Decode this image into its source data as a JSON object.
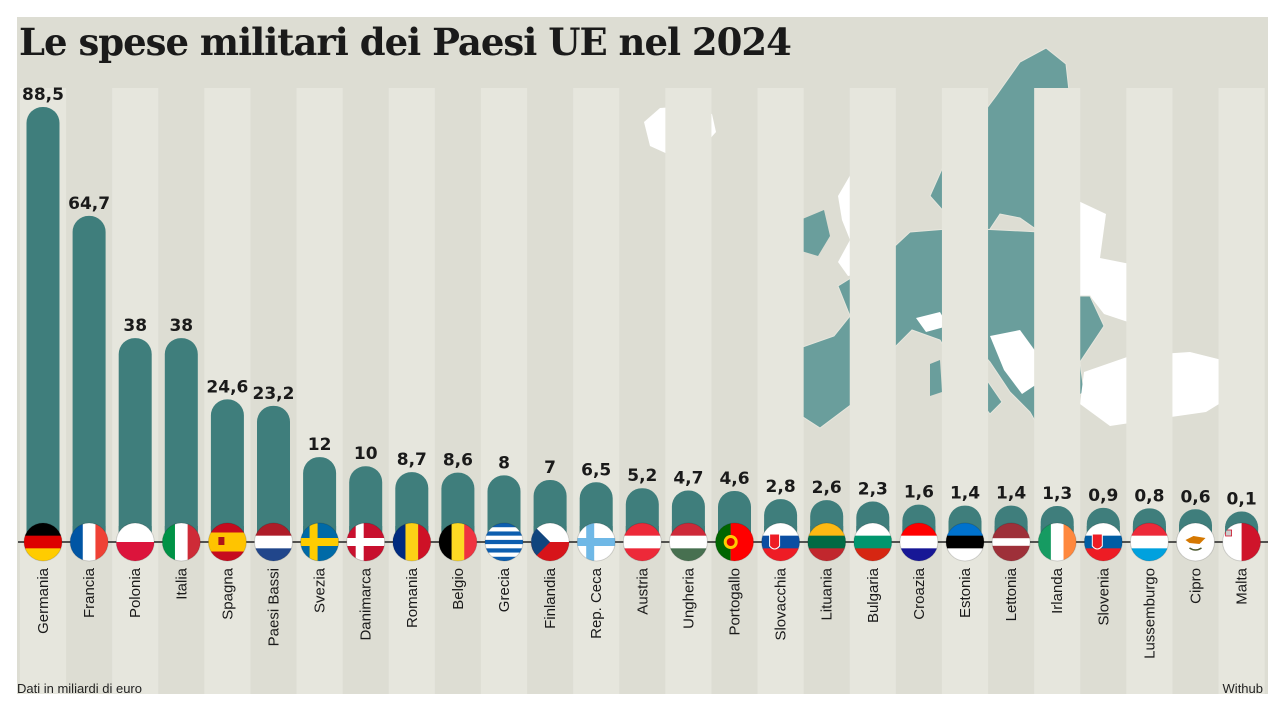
{
  "title": "Le spese militari dei Paesi UE nel 2024",
  "footnote": "Dati in miliardi di euro",
  "source": "Withub",
  "colors": {
    "bar": "#3f7e7c",
    "stripe": "#e6e6dd",
    "background": "#ddddd3",
    "map_eu": "#6a9e9c",
    "map_other": "#ffffff"
  },
  "chart_data": {
    "type": "bar",
    "ylabel": "",
    "xlabel": "",
    "ylim": [
      0,
      88.5
    ],
    "categories": [
      "Germania",
      "Francia",
      "Polonia",
      "Italia",
      "Spagna",
      "Paesi Bassi",
      "Svezia",
      "Danimarca",
      "Romania",
      "Belgio",
      "Grecia",
      "Finlandia",
      "Rep. Ceca",
      "Austria",
      "Ungheria",
      "Portogallo",
      "Slovacchia",
      "Lituania",
      "Bulgaria",
      "Croazia",
      "Estonia",
      "Lettonia",
      "Irlanda",
      "Slovenia",
      "Lussemburgo",
      "Cipro",
      "Malta"
    ],
    "values": [
      88.5,
      64.7,
      38,
      38,
      24.6,
      23.2,
      12,
      10,
      8.7,
      8.6,
      8,
      7,
      6.5,
      5.2,
      4.7,
      4.6,
      2.8,
      2.6,
      2.3,
      1.6,
      1.4,
      1.4,
      1.3,
      0.9,
      0.8,
      0.6,
      0.1
    ],
    "value_labels": [
      "88,5",
      "64,7",
      "38",
      "38",
      "24,6",
      "23,2",
      "12",
      "10",
      "8,7",
      "8,6",
      "8",
      "7",
      "6,5",
      "5,2",
      "4,7",
      "4,6",
      "2,8",
      "2,6",
      "2,3",
      "1,6",
      "1,4",
      "1,4",
      "1,3",
      "0,9",
      "0,8",
      "0,6",
      "0,1"
    ],
    "flags": [
      {
        "type": "h",
        "colors": [
          "#000000",
          "#dd0000",
          "#ffcc00"
        ]
      },
      {
        "type": "v",
        "colors": [
          "#0055a4",
          "#ffffff",
          "#ef4135"
        ]
      },
      {
        "type": "h",
        "colors": [
          "#ffffff",
          "#dc143c"
        ]
      },
      {
        "type": "v",
        "colors": [
          "#009246",
          "#ffffff",
          "#ce2b37"
        ]
      },
      {
        "type": "h",
        "colors": [
          "#c60b1e",
          "#ffc400",
          "#ffc400",
          "#c60b1e"
        ]
      },
      {
        "type": "h",
        "colors": [
          "#ae1c28",
          "#ffffff",
          "#21468b"
        ]
      },
      {
        "type": "nordic",
        "colors": [
          "#006aa7",
          "#fecc00"
        ]
      },
      {
        "type": "nordic",
        "colors": [
          "#c8102e",
          "#ffffff"
        ]
      },
      {
        "type": "v",
        "colors": [
          "#002b7f",
          "#fcd116",
          "#ce1126"
        ]
      },
      {
        "type": "v",
        "colors": [
          "#000000",
          "#fdda24",
          "#ef3340"
        ]
      },
      {
        "type": "h",
        "colors": [
          "#0d5eaf",
          "#ffffff",
          "#0d5eaf",
          "#ffffff",
          "#0d5eaf",
          "#ffffff",
          "#0d5eaf",
          "#ffffff",
          "#0d5eaf"
        ]
      },
      {
        "type": "czech",
        "colors": [
          "#ffffff",
          "#d7141a",
          "#11457e"
        ]
      },
      {
        "type": "nordic",
        "colors": [
          "#ffffff",
          "#6fb8e6"
        ]
      },
      {
        "type": "h",
        "colors": [
          "#ed2939",
          "#ffffff",
          "#ed2939"
        ]
      },
      {
        "type": "h",
        "colors": [
          "#ce2939",
          "#ffffff",
          "#477050"
        ]
      },
      {
        "type": "v2",
        "colors": [
          "#006600",
          "#ff0000"
        ]
      },
      {
        "type": "h",
        "colors": [
          "#ffffff",
          "#0b4ea2",
          "#ee1c25"
        ]
      },
      {
        "type": "h",
        "colors": [
          "#fdb913",
          "#006a44",
          "#c1272d"
        ]
      },
      {
        "type": "h",
        "colors": [
          "#ffffff",
          "#00966e",
          "#d62612"
        ]
      },
      {
        "type": "h",
        "colors": [
          "#ff0000",
          "#ffffff",
          "#171796"
        ]
      },
      {
        "type": "h",
        "colors": [
          "#0072ce",
          "#000000",
          "#ffffff"
        ]
      },
      {
        "type": "h3",
        "colors": [
          "#9e3039",
          "#ffffff",
          "#9e3039"
        ]
      },
      {
        "type": "v",
        "colors": [
          "#169b62",
          "#ffffff",
          "#ff883e"
        ]
      },
      {
        "type": "h",
        "colors": [
          "#ffffff",
          "#005da4",
          "#ed1c24"
        ]
      },
      {
        "type": "h",
        "colors": [
          "#ed2939",
          "#ffffff",
          "#00a1de"
        ]
      },
      {
        "type": "cyprus",
        "colors": [
          "#ffffff",
          "#d57800"
        ]
      },
      {
        "type": "v",
        "colors": [
          "#ffffff",
          "#cf142b"
        ]
      }
    ]
  }
}
